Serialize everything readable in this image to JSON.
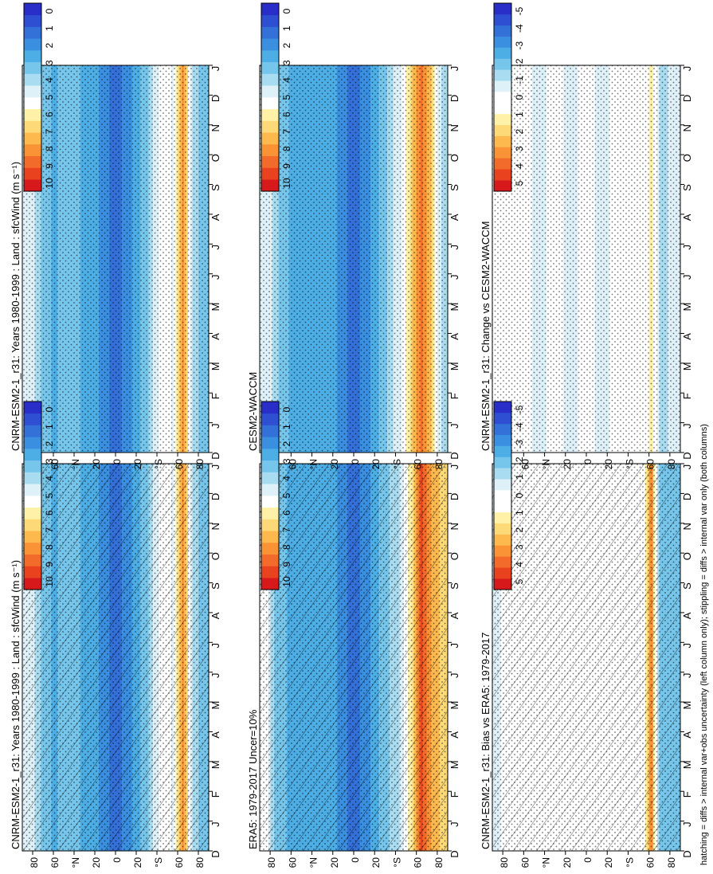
{
  "figure": {
    "footnote": "hatching = diffs > internal var+obs uncertainty (left column only); stippling = diffs > internal var only (both columns)"
  },
  "months": [
    "D",
    "J",
    "F",
    "M",
    "A",
    "M",
    "J",
    "J",
    "A",
    "S",
    "O",
    "N",
    "D",
    "J"
  ],
  "lat_labels": [
    "80",
    "60",
    "°N",
    "20",
    "0",
    "20",
    "°S",
    "60",
    "80"
  ],
  "colorbars": {
    "absolute": {
      "labels": [
        "10",
        "9",
        "8",
        "7",
        "6",
        "5",
        "4",
        "3",
        "2",
        "1",
        "0"
      ],
      "colors": [
        "#d7191c",
        "#e8421f",
        "#f26b2a",
        "#f99336",
        "#fdb84e",
        "#fed978",
        "#fff2a8",
        "#ffffff",
        "#dff1f8",
        "#a9dcf0",
        "#76c6ec",
        "#4daee6",
        "#3a8fe0",
        "#3370d8",
        "#2f4fd3",
        "#2a2ec9"
      ]
    },
    "difference": {
      "labels": [
        "5",
        "4",
        "3",
        "2",
        "1",
        "0",
        "-1",
        "-2",
        "-3",
        "-4",
        "-5"
      ],
      "colors": [
        "#d7191c",
        "#e8421f",
        "#f26b2a",
        "#f99336",
        "#fdb84e",
        "#fed978",
        "#fff2a8",
        "#ffffff",
        "#ffffff",
        "#dff1f8",
        "#a9dcf0",
        "#76c6ec",
        "#4daee6",
        "#3a8fe0",
        "#3370d8",
        "#2f4fd3",
        "#2a2ec9"
      ]
    }
  },
  "chart_data": [
    {
      "panel": "top-left",
      "type": "heatmap",
      "title": "CNRM-ESM2-1_r31: Years 1980-1999 : Land : sfcWind (m s⁻¹)",
      "x": [
        "D",
        "J",
        "F",
        "M",
        "A",
        "M",
        "J",
        "J",
        "A",
        "S",
        "O",
        "N",
        "D",
        "J"
      ],
      "y_ticks": [
        "80",
        "60",
        "°N",
        "20",
        "0",
        "20",
        "°S",
        "60",
        "80"
      ],
      "colorbar": "absolute",
      "zlim": [
        0,
        10
      ],
      "latitude_profile": [
        {
          "lat": 85,
          "value": 5
        },
        {
          "lat": 75,
          "value": 4
        },
        {
          "lat": 60,
          "value": 3
        },
        {
          "lat": 45,
          "value": 3.5
        },
        {
          "lat": 30,
          "value": 3
        },
        {
          "lat": 15,
          "value": 2.5
        },
        {
          "lat": 0,
          "value": 1.5
        },
        {
          "lat": -15,
          "value": 2.5
        },
        {
          "lat": -30,
          "value": 3.5
        },
        {
          "lat": -45,
          "value": 5.5
        },
        {
          "lat": -55,
          "value": 5
        },
        {
          "lat": -65,
          "value": 8
        },
        {
          "lat": -75,
          "value": 4
        },
        {
          "lat": -85,
          "value": 3.5
        }
      ],
      "hatching": true,
      "stippling": true
    },
    {
      "panel": "top-right",
      "type": "heatmap",
      "title": "CNRM-ESM2-1_r31: Years 1980-1999 : Land : sfcWind (m s⁻¹)",
      "x": [
        "D",
        "J",
        "F",
        "M",
        "A",
        "M",
        "J",
        "J",
        "A",
        "S",
        "O",
        "N",
        "D",
        "J"
      ],
      "y_ticks": [
        "80",
        "60",
        "°N",
        "20",
        "0",
        "20",
        "°S",
        "60",
        "80"
      ],
      "colorbar": "absolute",
      "zlim": [
        0,
        10
      ],
      "latitude_profile": [
        {
          "lat": 85,
          "value": 5
        },
        {
          "lat": 75,
          "value": 4
        },
        {
          "lat": 60,
          "value": 3
        },
        {
          "lat": 45,
          "value": 3.5
        },
        {
          "lat": 30,
          "value": 3
        },
        {
          "lat": 15,
          "value": 2.5
        },
        {
          "lat": 0,
          "value": 1.5
        },
        {
          "lat": -15,
          "value": 2.5
        },
        {
          "lat": -30,
          "value": 3.5
        },
        {
          "lat": -45,
          "value": 5.5
        },
        {
          "lat": -55,
          "value": 5
        },
        {
          "lat": -65,
          "value": 8
        },
        {
          "lat": -75,
          "value": 4
        },
        {
          "lat": -85,
          "value": 3.5
        }
      ],
      "hatching": false,
      "stippling": true
    },
    {
      "panel": "middle-left",
      "type": "heatmap",
      "title": "ERA5: 1979-2017 Uncer=10%",
      "x": [
        "D",
        "J",
        "F",
        "M",
        "A",
        "M",
        "J",
        "J",
        "A",
        "S",
        "O",
        "N",
        "D",
        "J"
      ],
      "y_ticks": [
        "80",
        "60",
        "°N",
        "20",
        "0",
        "20",
        "°S",
        "60",
        "80"
      ],
      "colorbar": "absolute",
      "zlim": [
        0,
        10
      ],
      "latitude_profile": [
        {
          "lat": 85,
          "value": 5.5
        },
        {
          "lat": 75,
          "value": 3.5
        },
        {
          "lat": 60,
          "value": 3
        },
        {
          "lat": 45,
          "value": 3
        },
        {
          "lat": 30,
          "value": 3
        },
        {
          "lat": 15,
          "value": 2.5
        },
        {
          "lat": 0,
          "value": 1.5
        },
        {
          "lat": -15,
          "value": 2.5
        },
        {
          "lat": -30,
          "value": 3.5
        },
        {
          "lat": -45,
          "value": 4.5
        },
        {
          "lat": -55,
          "value": 6
        },
        {
          "lat": -65,
          "value": 9
        },
        {
          "lat": -75,
          "value": 7.5
        },
        {
          "lat": -85,
          "value": 6.5
        }
      ],
      "hatching": true,
      "stippling": true
    },
    {
      "panel": "middle-right",
      "type": "heatmap",
      "title": "CESM2-WACCM",
      "x": [
        "D",
        "J",
        "F",
        "M",
        "A",
        "M",
        "J",
        "J",
        "A",
        "S",
        "O",
        "N",
        "D",
        "J"
      ],
      "y_ticks": [
        "80",
        "60",
        "°N",
        "20",
        "0",
        "20",
        "°S",
        "60",
        "80"
      ],
      "colorbar": "absolute",
      "zlim": [
        0,
        10
      ],
      "latitude_profile": [
        {
          "lat": 85,
          "value": 5
        },
        {
          "lat": 75,
          "value": 4
        },
        {
          "lat": 60,
          "value": 3
        },
        {
          "lat": 45,
          "value": 3
        },
        {
          "lat": 30,
          "value": 3
        },
        {
          "lat": 15,
          "value": 2.5
        },
        {
          "lat": 0,
          "value": 1.5
        },
        {
          "lat": -15,
          "value": 2.5
        },
        {
          "lat": -30,
          "value": 3.5
        },
        {
          "lat": -45,
          "value": 5
        },
        {
          "lat": -55,
          "value": 6.5
        },
        {
          "lat": -65,
          "value": 8.5
        },
        {
          "lat": -75,
          "value": 6.5
        },
        {
          "lat": -85,
          "value": 4
        }
      ],
      "hatching": false,
      "stippling": true
    },
    {
      "panel": "bottom-left",
      "type": "heatmap",
      "title": "CNRM-ESM2-1_r31: Bias vs ERA5: 1979-2017",
      "x": [
        "D",
        "J",
        "F",
        "M",
        "A",
        "M",
        "J",
        "J",
        "A",
        "S",
        "O",
        "N",
        "D",
        "J"
      ],
      "y_ticks": [
        "80",
        "60",
        "°N",
        "20",
        "0",
        "20",
        "°S",
        "60",
        "80"
      ],
      "colorbar": "difference",
      "zlim": [
        -5,
        5
      ],
      "latitude_profile": [
        {
          "lat": 85,
          "value": -0.5
        },
        {
          "lat": 75,
          "value": 0.3
        },
        {
          "lat": 60,
          "value": 0.2
        },
        {
          "lat": 45,
          "value": 0
        },
        {
          "lat": 30,
          "value": 0.5
        },
        {
          "lat": 15,
          "value": 0.2
        },
        {
          "lat": 0,
          "value": 0
        },
        {
          "lat": -15,
          "value": 0
        },
        {
          "lat": -30,
          "value": 0.3
        },
        {
          "lat": -45,
          "value": 0.8
        },
        {
          "lat": -55,
          "value": 0
        },
        {
          "lat": -62,
          "value": 3.5
        },
        {
          "lat": -70,
          "value": -2
        },
        {
          "lat": -85,
          "value": -1.5
        }
      ],
      "hatching": true,
      "stippling": true
    },
    {
      "panel": "bottom-right",
      "type": "heatmap",
      "title": "CNRM-ESM2-1_r31: Change vs CESM2-WACCM",
      "x": [
        "D",
        "J",
        "F",
        "M",
        "A",
        "M",
        "J",
        "J",
        "A",
        "S",
        "O",
        "N",
        "D",
        "J"
      ],
      "y_ticks": [
        "80",
        "60",
        "°N",
        "20",
        "0",
        "20",
        "°S",
        "60",
        "80"
      ],
      "colorbar": "difference",
      "zlim": [
        -5,
        5
      ],
      "latitude_profile": [
        {
          "lat": 85,
          "value": 0.5
        },
        {
          "lat": 75,
          "value": 0
        },
        {
          "lat": 60,
          "value": 0
        },
        {
          "lat": 45,
          "value": -0.5
        },
        {
          "lat": 30,
          "value": 0
        },
        {
          "lat": 15,
          "value": -0.5
        },
        {
          "lat": 0,
          "value": 0
        },
        {
          "lat": -15,
          "value": -0.5
        },
        {
          "lat": -30,
          "value": 0
        },
        {
          "lat": -45,
          "value": 0
        },
        {
          "lat": -55,
          "value": 0
        },
        {
          "lat": -62,
          "value": 1.5
        },
        {
          "lat": -70,
          "value": -1
        },
        {
          "lat": -85,
          "value": -0.8
        }
      ],
      "hatching": false,
      "stippling": true
    }
  ]
}
